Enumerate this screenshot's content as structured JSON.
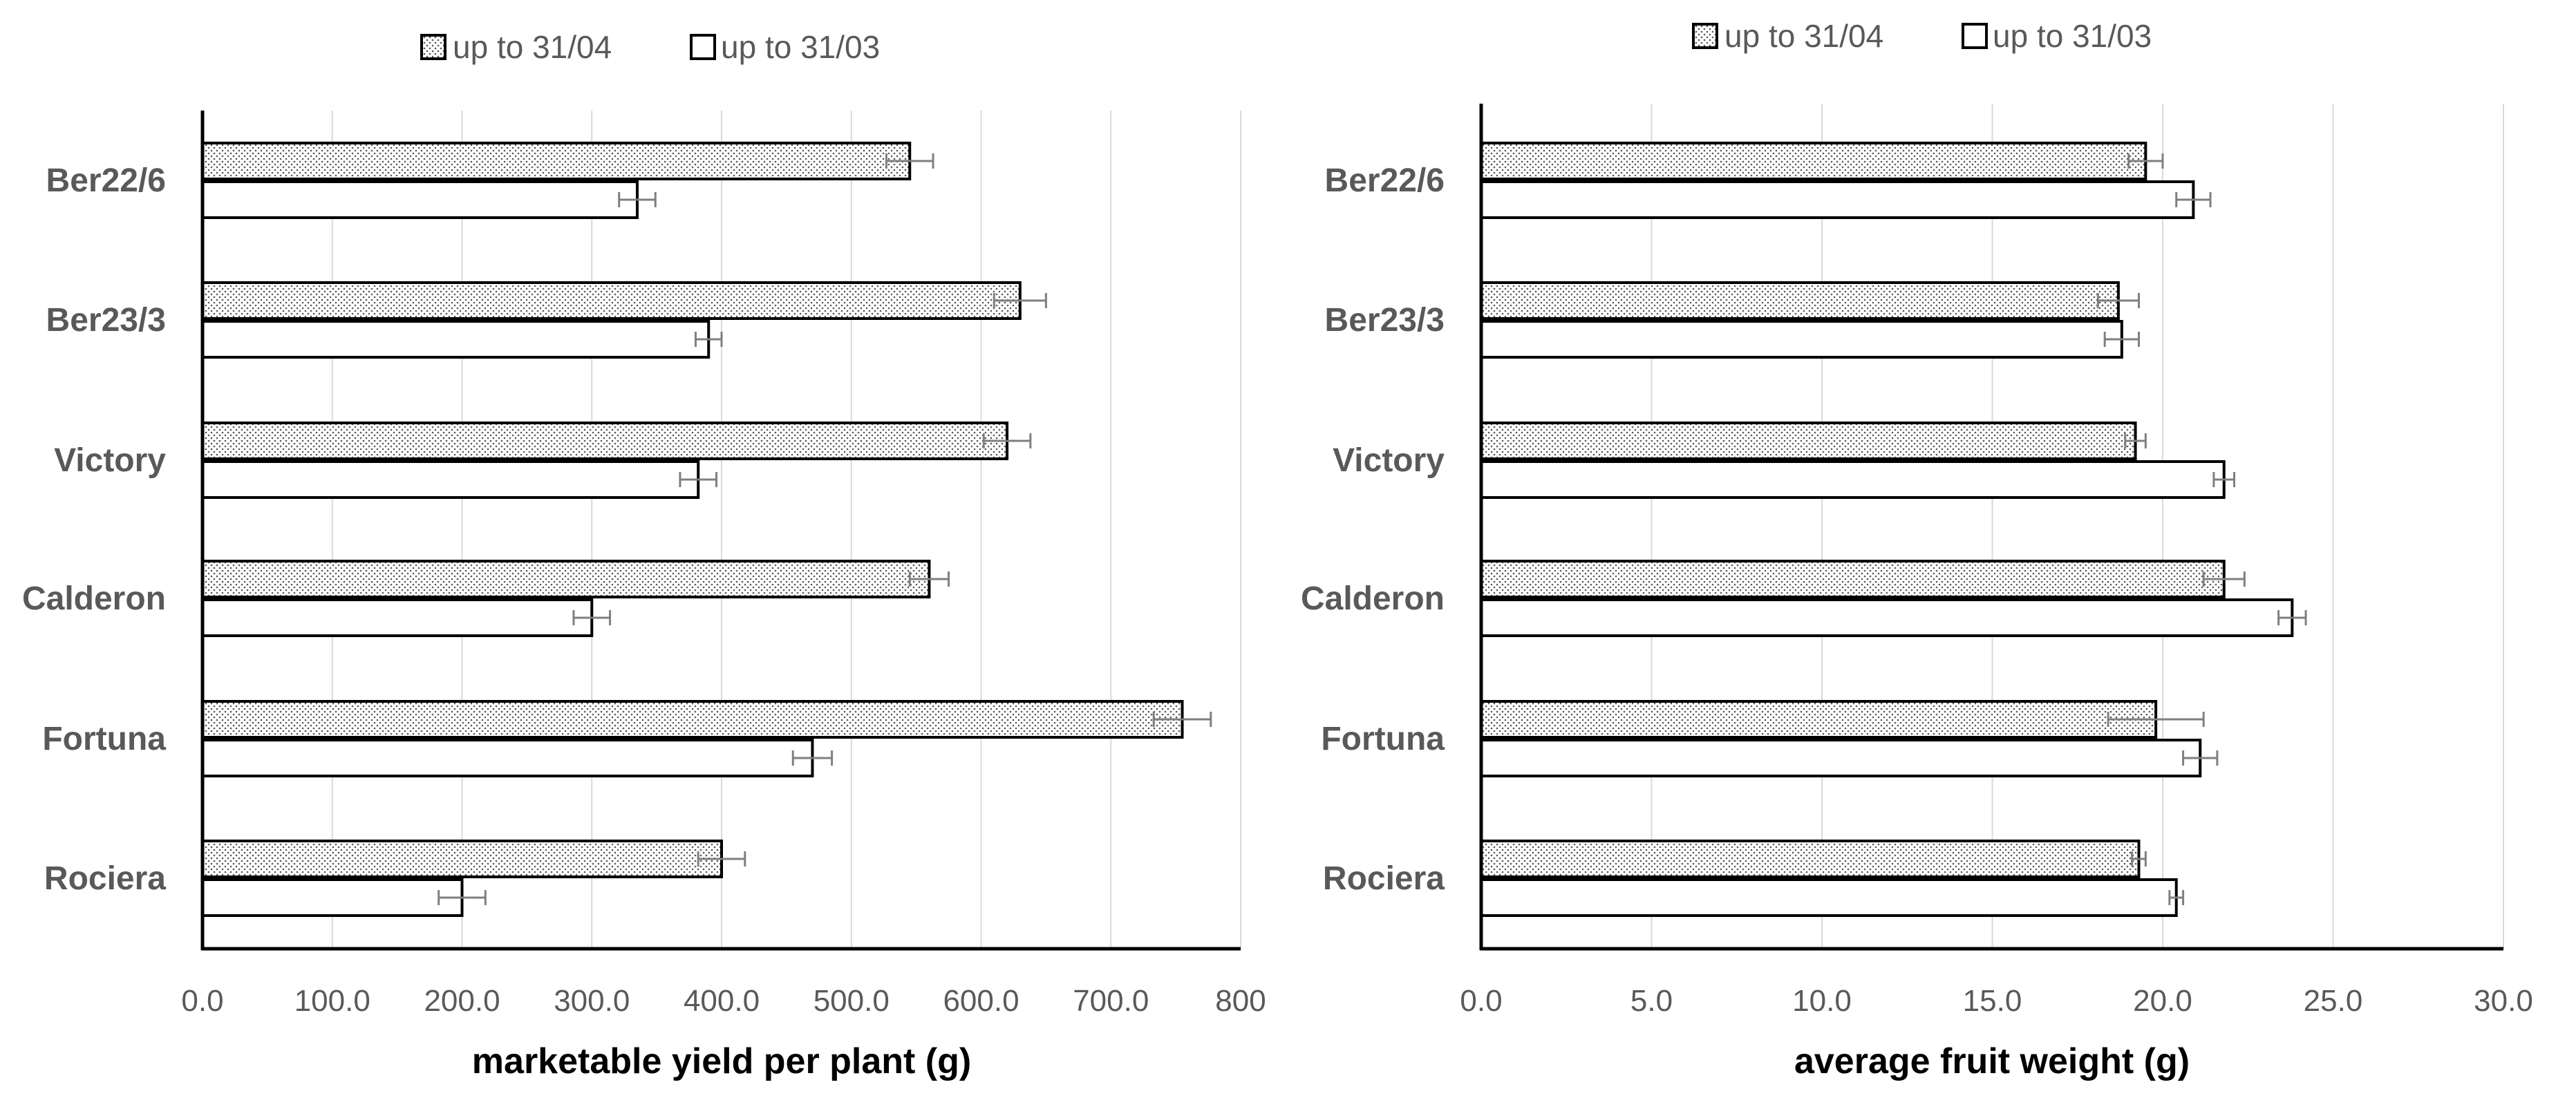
{
  "chart_data": [
    {
      "type": "bar",
      "orientation": "horizontal",
      "categories": [
        "Ber22/6",
        "Ber23/3",
        "Victory",
        "Calderon",
        "Fortuna",
        "Rociera"
      ],
      "series": [
        {
          "name": "up to 31/04",
          "pattern": "dotted",
          "values": [
            545,
            630,
            620,
            560,
            755,
            400
          ],
          "errors": [
            18,
            20,
            18,
            15,
            22,
            18
          ]
        },
        {
          "name": "up to 31/03",
          "pattern": "plain",
          "values": [
            335,
            390,
            382,
            300,
            470,
            200
          ],
          "errors": [
            14,
            10,
            14,
            14,
            15,
            18
          ]
        }
      ],
      "xlabel": "marketable yield per plant (g)",
      "xlim": [
        0,
        800
      ],
      "ticks": [
        0,
        100,
        200,
        300,
        400,
        500,
        600,
        700,
        800
      ],
      "tick_labels": [
        "0.0",
        "100.0",
        "200.0",
        "300.0",
        "400.0",
        "500.0",
        "600.0",
        "700.0",
        "800"
      ],
      "grid": true,
      "legend_position": "top"
    },
    {
      "type": "bar",
      "orientation": "horizontal",
      "categories": [
        "Ber22/6",
        "Ber23/3",
        "Victory",
        "Calderon",
        "Fortuna",
        "Rociera"
      ],
      "series": [
        {
          "name": "up to 31/04",
          "pattern": "dotted",
          "values": [
            19.5,
            18.7,
            19.2,
            21.8,
            19.8,
            19.3
          ],
          "errors": [
            0.5,
            0.6,
            0.3,
            0.6,
            1.4,
            0.2
          ]
        },
        {
          "name": "up to 31/03",
          "pattern": "plain",
          "values": [
            20.9,
            18.8,
            21.8,
            23.8,
            21.1,
            20.4
          ],
          "errors": [
            0.5,
            0.5,
            0.3,
            0.4,
            0.5,
            0.2
          ]
        }
      ],
      "xlabel": "average fruit weight (g)",
      "xlim": [
        0,
        30
      ],
      "ticks": [
        0,
        5,
        10,
        15,
        20,
        25,
        30
      ],
      "tick_labels": [
        "0.0",
        "5.0",
        "10.0",
        "15.0",
        "20.0",
        "25.0",
        "30.0"
      ],
      "grid": true,
      "legend_position": "top"
    }
  ],
  "colors": {
    "bar_stroke": "#000000",
    "bar_fill": "#ffffff",
    "dot": "#555555",
    "grid": "#d9d9d9",
    "error_bar": "#7f7f7f",
    "axis": "#000000"
  }
}
